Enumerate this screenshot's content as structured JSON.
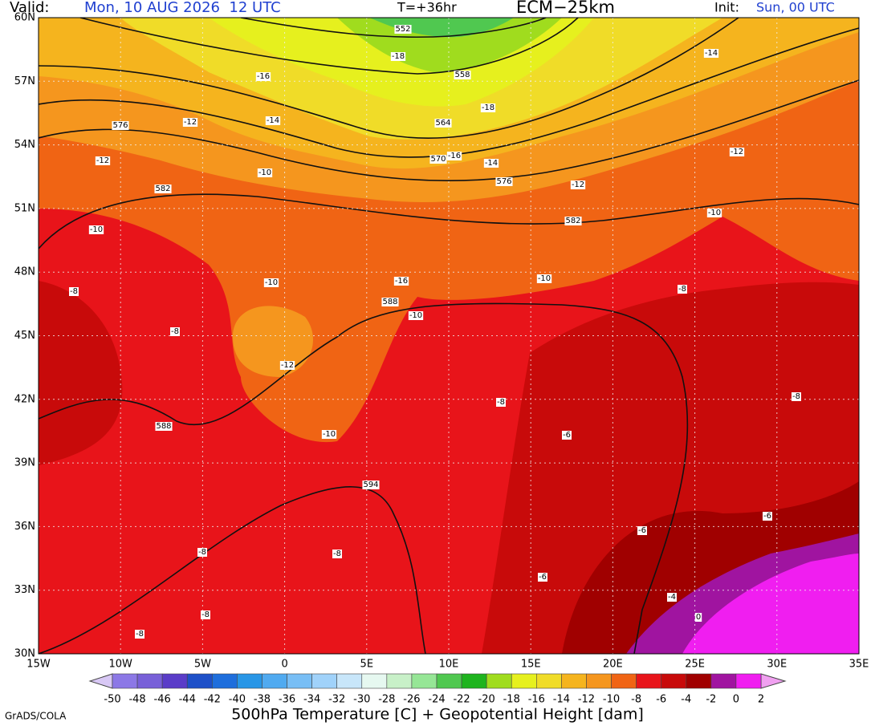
{
  "header": {
    "valid_label": "Valid:",
    "valid_time": "Mon, 10 AUG 2026  12 UTC",
    "forecast_hour": "T=+36hr",
    "model": "ECM−25km",
    "init_label": "Init:",
    "init_time": "Sun, 00 UTC"
  },
  "map": {
    "lat_labels": [
      "60N",
      "57N",
      "54N",
      "51N",
      "48N",
      "45N",
      "42N",
      "39N",
      "36N",
      "33N",
      "30N"
    ],
    "lon_labels": [
      "15W",
      "10W",
      "5W",
      "0",
      "5E",
      "10E",
      "15E",
      "20E",
      "25E",
      "30E",
      "35E"
    ],
    "contour_labels": [
      "552",
      "-18",
      "558",
      "-16",
      "-18",
      "-12",
      "-14",
      "576",
      "564",
      "-12",
      "-16",
      "570",
      "-14",
      "-10",
      "576",
      "-12",
      "-12",
      "-14",
      "582",
      "-10",
      "-10",
      "582",
      "-10",
      "-8",
      "-16",
      "-10",
      "-8",
      "588",
      "-10",
      "-8",
      "-12",
      "-8",
      "-8",
      "588",
      "-10",
      "-6",
      "594",
      "-6",
      "-6",
      "-8",
      "-8",
      "-6",
      "-4",
      "0",
      "-8",
      "-8"
    ]
  },
  "colorbar": {
    "labels": [
      -50,
      -48,
      -46,
      -44,
      -42,
      -40,
      -38,
      -36,
      -34,
      -32,
      -30,
      -28,
      -26,
      -24,
      -22,
      -20,
      -18,
      -16,
      -14,
      -12,
      -10,
      -8,
      -6,
      -4,
      -2,
      0,
      2
    ],
    "colors": [
      "#a08cf0",
      "#8c78e6",
      "#7860d8",
      "#5a3cc8",
      "#1e50c8",
      "#1e6edc",
      "#2896e6",
      "#50aaf0",
      "#78bef5",
      "#a0d2fa",
      "#c8e6fa",
      "#e6f8f0",
      "#c8f0c8",
      "#96e696",
      "#50c850",
      "#1eb41e",
      "#a0dc1e",
      "#e6f01e",
      "#f0dc28",
      "#f5b41e",
      "#f5961e",
      "#f06414",
      "#e8141a",
      "#c80a0a",
      "#a00000",
      "#a014a0",
      "#f01ef0"
    ],
    "low_color": "#d8c8f5",
    "high_color": "#f0a0f0",
    "title": "500hPa Temperature [C] + Geopotential Height [dam]"
  },
  "footer": {
    "credit": "GrADS/COLA"
  }
}
